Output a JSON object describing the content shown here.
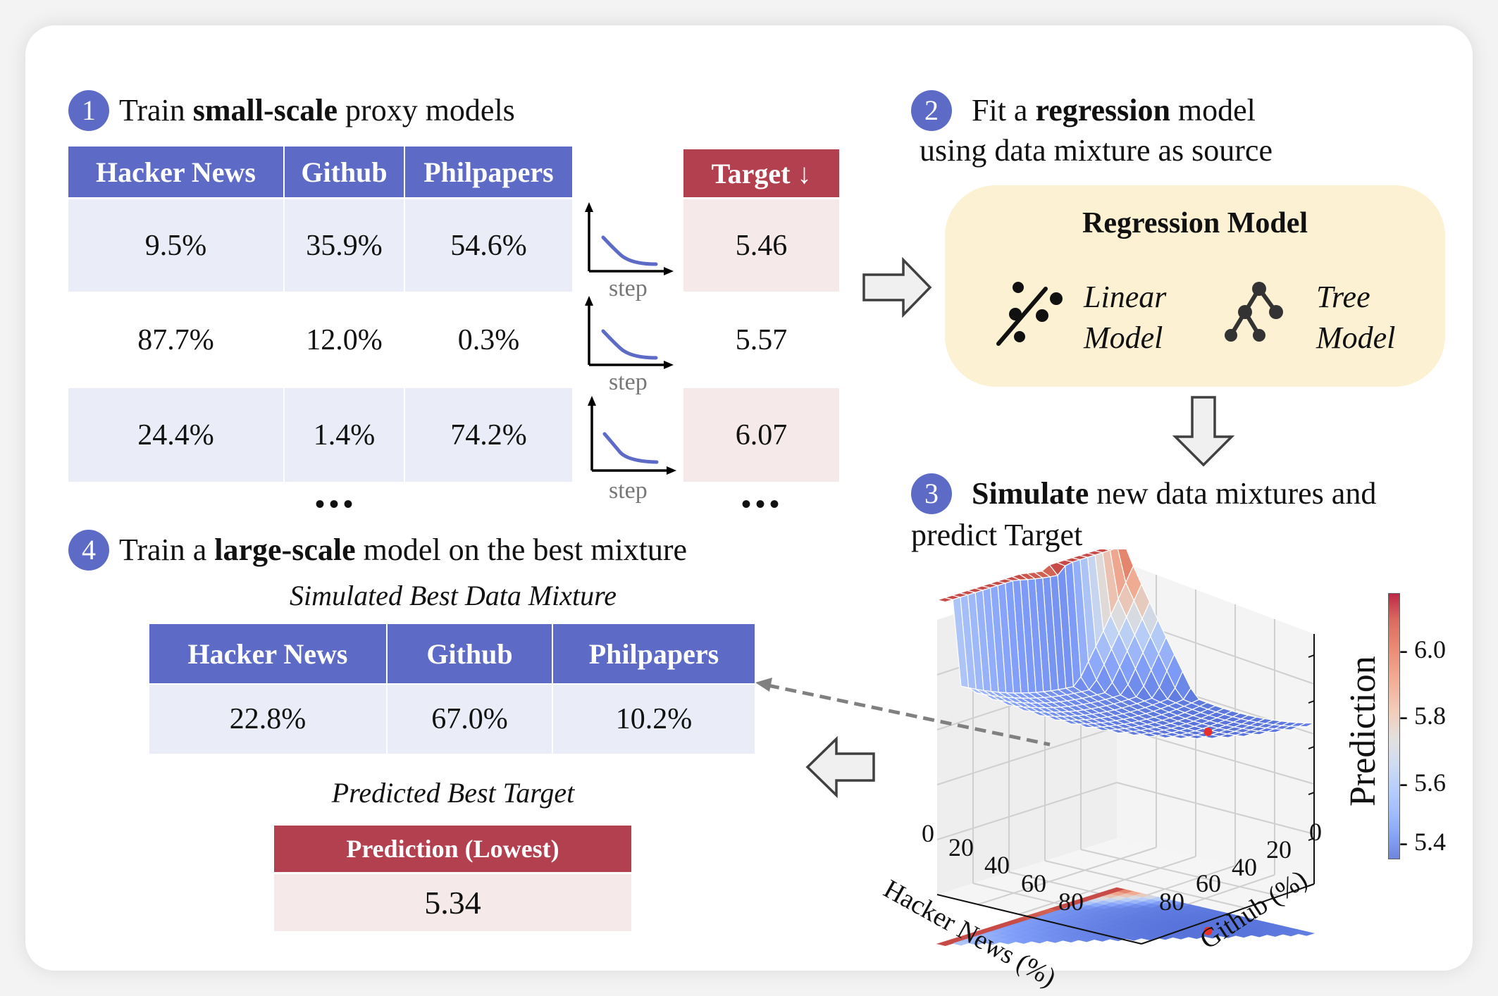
{
  "steps": [
    {
      "number": "1",
      "pre": "Train ",
      "bold": "small-scale",
      "post": " proxy models"
    },
    {
      "number": "2",
      "pre": "Fit a ",
      "bold": "regression",
      "post": " model",
      "line2": "using data mixture as source"
    },
    {
      "number": "3",
      "pre": "",
      "bold": "Simulate",
      "post": " new data mixtures and",
      "line2": "predict Target"
    },
    {
      "number": "4",
      "pre": "Train a ",
      "bold": "large-scale",
      "post": " model on the best mixture"
    }
  ],
  "proxy_table": {
    "headers": [
      "Hacker News",
      "Github",
      "Philpapers"
    ],
    "rows": [
      [
        "9.5%",
        "35.9%",
        "54.6%"
      ],
      [
        "87.7%",
        "12.0%",
        "0.3%"
      ],
      [
        "24.4%",
        "1.4%",
        "74.2%"
      ]
    ],
    "ellipsis": "•••"
  },
  "target_table": {
    "header": "Target ↓",
    "values": [
      "5.46",
      "5.57",
      "6.07"
    ],
    "ellipsis": "•••"
  },
  "loss_curve_label": "step",
  "regression_box": {
    "title": "Regression Model",
    "models": [
      {
        "icon": "linear-regression-icon",
        "line1": "Linear",
        "line2": "Model"
      },
      {
        "icon": "decision-tree-icon",
        "line1": "Tree",
        "line2": "Model"
      }
    ]
  },
  "best_mixture": {
    "caption": "Simulated Best Data Mixture",
    "headers": [
      "Hacker News",
      "Github",
      "Philpapers"
    ],
    "values": [
      "22.8%",
      "67.0%",
      "10.2%"
    ]
  },
  "best_target": {
    "caption": "Predicted Best Target",
    "header": "Prediction (Lowest)",
    "value": "5.34"
  },
  "surface_plot": {
    "x_axis_label": "Hacker News (%)",
    "y_axis_label": "Github (%)",
    "x_ticks": [
      "0",
      "20",
      "40",
      "60",
      "80"
    ],
    "y_ticks": [
      "0",
      "20",
      "40",
      "60",
      "80"
    ],
    "colorbar_label": "Prediction",
    "colorbar_ticks": [
      "6.0",
      "5.8",
      "5.6",
      "5.4"
    ],
    "colorbar_range": [
      5.33,
      6.13
    ],
    "colormap": "coolwarm",
    "optimum": {
      "hacker_news_pct": 22.8,
      "github_pct": 67.0,
      "prediction": 5.34
    },
    "marker_color": "#e8302a"
  },
  "colors": {
    "accent_blue": "#5d6bc6",
    "accent_red": "#b3404f",
    "row_blue": "#eaedf7",
    "row_pink": "#f6e9ea",
    "regression_bg": "#fcf1d2",
    "arrow_fill": "#f0f0f0",
    "arrow_stroke": "#404040"
  }
}
